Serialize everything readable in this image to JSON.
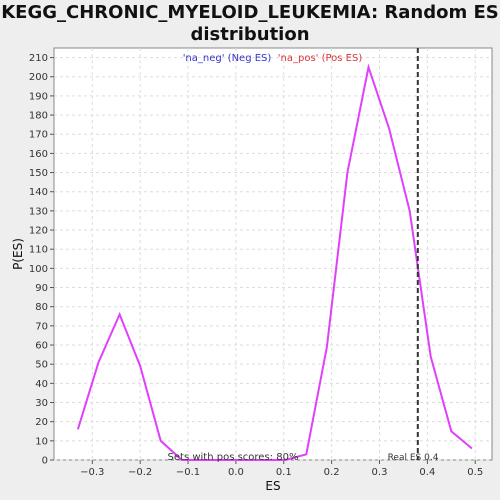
{
  "chart_data": {
    "type": "line",
    "title_line1": "KEGG_CHRONIC_MYELOID_LEUKEMIA: Random ES",
    "title_line2": "distribution",
    "xlabel": "ES",
    "ylabel": "P(ES)",
    "xlim": [
      -0.38,
      0.535
    ],
    "ylim": [
      0,
      215
    ],
    "x_ticks": [
      -0.3,
      -0.2,
      -0.1,
      0.0,
      0.1,
      0.2,
      0.3,
      0.4,
      0.5
    ],
    "x_tick_labels": [
      "−0.3",
      "−0.2",
      "−0.1",
      "0.0",
      "0.1",
      "0.2",
      "0.3",
      "0.4",
      "0.5"
    ],
    "y_ticks": [
      0,
      10,
      20,
      30,
      40,
      50,
      60,
      70,
      80,
      90,
      100,
      110,
      120,
      130,
      140,
      150,
      160,
      170,
      180,
      190,
      200,
      210
    ],
    "grid": true,
    "legend": [
      {
        "label": "'na_neg' (Neg ES)",
        "color": "#3333cc"
      },
      {
        "label": "'na_pos' (Pos ES)",
        "color": "#dd3333"
      }
    ],
    "series": [
      {
        "color": "#e040fb",
        "x": [
          -0.33,
          -0.287,
          -0.243,
          -0.2,
          -0.157,
          -0.113,
          -0.07,
          -0.027,
          0.017,
          0.06,
          0.103,
          0.147,
          0.19,
          0.233,
          0.277,
          0.32,
          0.363,
          0.407,
          0.45,
          0.493
        ],
        "y": [
          16,
          51,
          76,
          49,
          10,
          0,
          0,
          0,
          0,
          0,
          0,
          3,
          59,
          150,
          205,
          173,
          130,
          54,
          15,
          6
        ]
      }
    ],
    "real_es": 0.38,
    "real_es_label": "Real ES 0.4",
    "annotation": "Sets with pos scores: 80%"
  }
}
